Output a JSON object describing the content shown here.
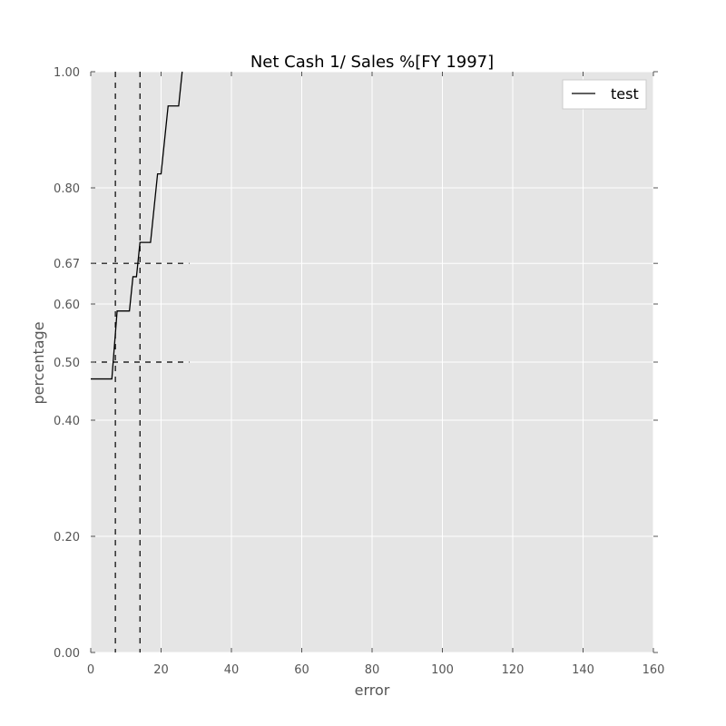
{
  "chart_data": {
    "type": "line",
    "title": "Net Cash 1/ Sales %[FY 1997]",
    "xlabel": "error",
    "ylabel": "percentage",
    "xlim": [
      0,
      160
    ],
    "ylim": [
      0,
      1
    ],
    "grid": true,
    "legend_position": "top-right",
    "x_ticks": [
      0,
      20,
      40,
      60,
      80,
      100,
      120,
      140,
      160
    ],
    "y_ticks": [
      0.0,
      0.2,
      0.4,
      0.5,
      0.6,
      0.67,
      0.8,
      1.0
    ],
    "x_tick_labels": [
      "0",
      "20",
      "40",
      "60",
      "80",
      "100",
      "120",
      "140",
      "160"
    ],
    "y_tick_labels": [
      "0.00",
      "0.20",
      "0.40",
      "0.50",
      "0.60",
      "0.67",
      "0.80",
      "1.00"
    ],
    "series": [
      {
        "name": "test",
        "color": "#000000",
        "x": [
          0,
          6,
          7.5,
          11,
          12,
          13,
          14,
          17,
          19,
          20,
          22,
          25,
          26
        ],
        "y": [
          0.471,
          0.471,
          0.588,
          0.588,
          0.647,
          0.647,
          0.706,
          0.706,
          0.824,
          0.824,
          0.941,
          0.941,
          1.0
        ]
      }
    ],
    "reference_lines": [
      {
        "orientation": "vertical",
        "x": 7,
        "style": "dashed"
      },
      {
        "orientation": "vertical",
        "x": 14,
        "style": "dashed"
      },
      {
        "orientation": "horizontal",
        "y": 0.5,
        "x_range": [
          0,
          28
        ],
        "style": "dashed"
      },
      {
        "orientation": "horizontal",
        "y": 0.67,
        "x_range": [
          0,
          28
        ],
        "style": "dashed"
      }
    ],
    "colors": {
      "plot_background": "#e5e5e5",
      "grid": "#ffffff",
      "tick_text": "#555555"
    }
  }
}
